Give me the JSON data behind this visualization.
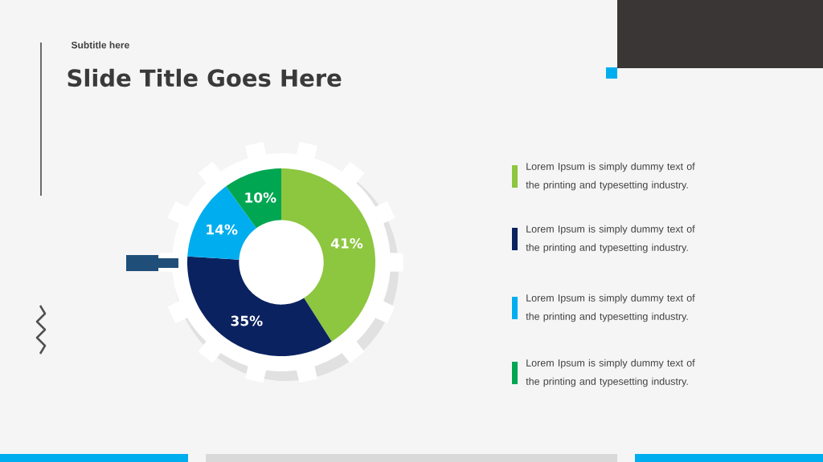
{
  "chart_data": {
    "type": "donut",
    "title": "Slide Title Goes Here",
    "subtitle": "Subtitle here",
    "categories": [
      "Lorem Ipsum is simply dummy text of the printing and typesetting industry.",
      "Lorem Ipsum is simply dummy text of the printing and typesetting industry.",
      "Lorem Ipsum is simply dummy text of the printing and typesetting industry.",
      "Lorem Ipsum is simply dummy text of the printing and typesetting industry."
    ],
    "values": [
      41,
      35,
      14,
      10
    ],
    "colors": [
      "#8dc63f",
      "#0b2260",
      "#00aeef",
      "#00a651"
    ],
    "value_labels": [
      "41%",
      "35%",
      "14%",
      "10%"
    ],
    "legend": "right"
  }
}
